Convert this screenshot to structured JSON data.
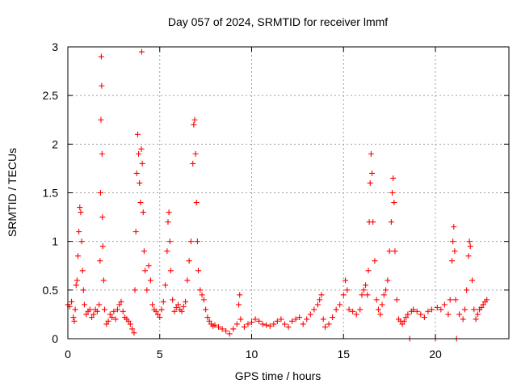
{
  "chart_data": {
    "type": "scatter",
    "title": "Day 057 of 2024, SRMTID for receiver lmmf",
    "xlabel": "GPS time / hours",
    "ylabel": "SRMTID / TECUs",
    "xlim": [
      0,
      24
    ],
    "ylim": [
      0,
      3
    ],
    "xticks": [
      0,
      5,
      10,
      15,
      20
    ],
    "xtick_labels": [
      "0",
      "5",
      "10",
      "15",
      "20"
    ],
    "yticks": [
      0,
      0.5,
      1,
      1.5,
      2,
      2.5,
      3
    ],
    "ytick_labels": [
      "0",
      "0.5",
      "1",
      "1.5",
      "2",
      "2.5",
      "3"
    ],
    "grid": true,
    "marker": "+",
    "color": "#ff0000",
    "series": [
      {
        "name": "SRMTID",
        "points": [
          [
            0.0,
            0.35
          ],
          [
            0.1,
            0.33
          ],
          [
            0.2,
            0.38
          ],
          [
            0.3,
            0.22
          ],
          [
            0.35,
            0.18
          ],
          [
            0.4,
            0.3
          ],
          [
            0.45,
            0.55
          ],
          [
            0.5,
            0.6
          ],
          [
            0.55,
            0.85
          ],
          [
            0.6,
            1.1
          ],
          [
            0.65,
            1.35
          ],
          [
            0.7,
            1.3
          ],
          [
            0.75,
            1.0
          ],
          [
            0.8,
            0.7
          ],
          [
            0.85,
            0.5
          ],
          [
            0.9,
            0.35
          ],
          [
            1.0,
            0.25
          ],
          [
            1.1,
            0.28
          ],
          [
            1.2,
            0.3
          ],
          [
            1.3,
            0.22
          ],
          [
            1.4,
            0.25
          ],
          [
            1.5,
            0.3
          ],
          [
            1.6,
            0.28
          ],
          [
            1.7,
            0.35
          ],
          [
            1.75,
            0.8
          ],
          [
            1.78,
            1.5
          ],
          [
            1.8,
            2.25
          ],
          [
            1.82,
            2.9
          ],
          [
            1.84,
            2.6
          ],
          [
            1.86,
            1.9
          ],
          [
            1.88,
            1.25
          ],
          [
            1.9,
            0.95
          ],
          [
            1.95,
            0.6
          ],
          [
            2.0,
            0.3
          ],
          [
            2.1,
            0.15
          ],
          [
            2.2,
            0.18
          ],
          [
            2.3,
            0.25
          ],
          [
            2.4,
            0.22
          ],
          [
            2.5,
            0.28
          ],
          [
            2.6,
            0.2
          ],
          [
            2.7,
            0.3
          ],
          [
            2.8,
            0.35
          ],
          [
            2.9,
            0.38
          ],
          [
            3.0,
            0.28
          ],
          [
            3.1,
            0.22
          ],
          [
            3.2,
            0.2
          ],
          [
            3.3,
            0.18
          ],
          [
            3.4,
            0.15
          ],
          [
            3.5,
            0.1
          ],
          [
            3.6,
            0.06
          ],
          [
            3.65,
            0.5
          ],
          [
            3.7,
            1.1
          ],
          [
            3.75,
            1.7
          ],
          [
            3.8,
            2.1
          ],
          [
            3.85,
            1.9
          ],
          [
            3.9,
            1.6
          ],
          [
            3.95,
            1.4
          ],
          [
            4.0,
            1.95
          ],
          [
            4.02,
            2.95
          ],
          [
            4.05,
            1.8
          ],
          [
            4.1,
            1.3
          ],
          [
            4.15,
            0.9
          ],
          [
            4.2,
            0.7
          ],
          [
            4.3,
            0.5
          ],
          [
            4.4,
            0.75
          ],
          [
            4.5,
            0.6
          ],
          [
            4.6,
            0.35
          ],
          [
            4.7,
            0.3
          ],
          [
            4.8,
            0.28
          ],
          [
            4.9,
            0.25
          ],
          [
            5.0,
            0.22
          ],
          [
            5.1,
            0.3
          ],
          [
            5.2,
            0.38
          ],
          [
            5.3,
            0.55
          ],
          [
            5.4,
            0.9
          ],
          [
            5.45,
            1.2
          ],
          [
            5.5,
            1.3
          ],
          [
            5.55,
            1.0
          ],
          [
            5.6,
            0.7
          ],
          [
            5.7,
            0.4
          ],
          [
            5.8,
            0.28
          ],
          [
            5.9,
            0.32
          ],
          [
            6.0,
            0.35
          ],
          [
            6.1,
            0.3
          ],
          [
            6.2,
            0.28
          ],
          [
            6.3,
            0.33
          ],
          [
            6.4,
            0.38
          ],
          [
            6.5,
            0.6
          ],
          [
            6.6,
            0.8
          ],
          [
            6.7,
            1.0
          ],
          [
            6.8,
            1.8
          ],
          [
            6.85,
            2.2
          ],
          [
            6.9,
            2.25
          ],
          [
            6.95,
            1.9
          ],
          [
            7.0,
            1.4
          ],
          [
            7.05,
            1.0
          ],
          [
            7.1,
            0.7
          ],
          [
            7.2,
            0.5
          ],
          [
            7.3,
            0.45
          ],
          [
            7.4,
            0.4
          ],
          [
            7.5,
            0.3
          ],
          [
            7.6,
            0.22
          ],
          [
            7.7,
            0.18
          ],
          [
            7.8,
            0.15
          ],
          [
            7.9,
            0.13
          ],
          [
            8.0,
            0.14
          ],
          [
            8.2,
            0.12
          ],
          [
            8.4,
            0.1
          ],
          [
            8.6,
            0.08
          ],
          [
            8.8,
            0.05
          ],
          [
            9.0,
            0.1
          ],
          [
            9.2,
            0.15
          ],
          [
            9.3,
            0.35
          ],
          [
            9.35,
            0.45
          ],
          [
            9.4,
            0.2
          ],
          [
            9.6,
            0.12
          ],
          [
            9.8,
            0.15
          ],
          [
            10.0,
            0.17
          ],
          [
            10.2,
            0.2
          ],
          [
            10.4,
            0.18
          ],
          [
            10.6,
            0.15
          ],
          [
            10.8,
            0.14
          ],
          [
            11.0,
            0.13
          ],
          [
            11.2,
            0.15
          ],
          [
            11.4,
            0.18
          ],
          [
            11.6,
            0.2
          ],
          [
            11.8,
            0.15
          ],
          [
            12.0,
            0.12
          ],
          [
            12.2,
            0.18
          ],
          [
            12.4,
            0.2
          ],
          [
            12.6,
            0.22
          ],
          [
            12.8,
            0.15
          ],
          [
            13.0,
            0.2
          ],
          [
            13.2,
            0.25
          ],
          [
            13.4,
            0.3
          ],
          [
            13.6,
            0.35
          ],
          [
            13.7,
            0.4
          ],
          [
            13.8,
            0.45
          ],
          [
            13.9,
            0.2
          ],
          [
            14.0,
            0.12
          ],
          [
            14.2,
            0.15
          ],
          [
            14.4,
            0.22
          ],
          [
            14.6,
            0.3
          ],
          [
            14.8,
            0.35
          ],
          [
            15.0,
            0.45
          ],
          [
            15.1,
            0.6
          ],
          [
            15.2,
            0.5
          ],
          [
            15.3,
            0.3
          ],
          [
            15.5,
            0.28
          ],
          [
            15.7,
            0.25
          ],
          [
            15.9,
            0.3
          ],
          [
            16.0,
            0.45
          ],
          [
            16.1,
            0.5
          ],
          [
            16.2,
            0.55
          ],
          [
            16.3,
            0.45
          ],
          [
            16.35,
            0.7
          ],
          [
            16.4,
            1.2
          ],
          [
            16.45,
            1.6
          ],
          [
            16.5,
            1.9
          ],
          [
            16.55,
            1.7
          ],
          [
            16.6,
            1.2
          ],
          [
            16.7,
            0.8
          ],
          [
            16.8,
            0.4
          ],
          [
            16.9,
            0.3
          ],
          [
            17.0,
            0.25
          ],
          [
            17.1,
            0.35
          ],
          [
            17.2,
            0.45
          ],
          [
            17.3,
            0.5
          ],
          [
            17.4,
            0.6
          ],
          [
            17.5,
            0.9
          ],
          [
            17.6,
            1.2
          ],
          [
            17.65,
            1.5
          ],
          [
            17.7,
            1.65
          ],
          [
            17.75,
            1.4
          ],
          [
            17.8,
            0.9
          ],
          [
            17.9,
            0.4
          ],
          [
            18.0,
            0.2
          ],
          [
            18.1,
            0.18
          ],
          [
            18.2,
            0.15
          ],
          [
            18.3,
            0.18
          ],
          [
            18.4,
            0.22
          ],
          [
            18.5,
            0.25
          ],
          [
            18.6,
            0.0
          ],
          [
            18.7,
            0.28
          ],
          [
            18.8,
            0.3
          ],
          [
            19.0,
            0.28
          ],
          [
            19.2,
            0.25
          ],
          [
            19.4,
            0.22
          ],
          [
            19.6,
            0.28
          ],
          [
            19.8,
            0.3
          ],
          [
            20.0,
            0.0
          ],
          [
            20.1,
            0.32
          ],
          [
            20.3,
            0.3
          ],
          [
            20.5,
            0.35
          ],
          [
            20.7,
            0.25
          ],
          [
            20.8,
            0.4
          ],
          [
            20.9,
            0.8
          ],
          [
            20.95,
            1.0
          ],
          [
            21.0,
            1.15
          ],
          [
            21.05,
            0.9
          ],
          [
            21.1,
            0.4
          ],
          [
            21.15,
            0.0
          ],
          [
            21.3,
            0.25
          ],
          [
            21.5,
            0.2
          ],
          [
            21.6,
            0.3
          ],
          [
            21.7,
            0.5
          ],
          [
            21.8,
            0.85
          ],
          [
            21.85,
            1.0
          ],
          [
            21.9,
            0.95
          ],
          [
            22.0,
            0.6
          ],
          [
            22.1,
            0.3
          ],
          [
            22.2,
            0.2
          ],
          [
            22.3,
            0.25
          ],
          [
            22.4,
            0.3
          ],
          [
            22.5,
            0.32
          ],
          [
            22.6,
            0.35
          ],
          [
            22.7,
            0.38
          ],
          [
            22.8,
            0.4
          ]
        ]
      }
    ]
  }
}
